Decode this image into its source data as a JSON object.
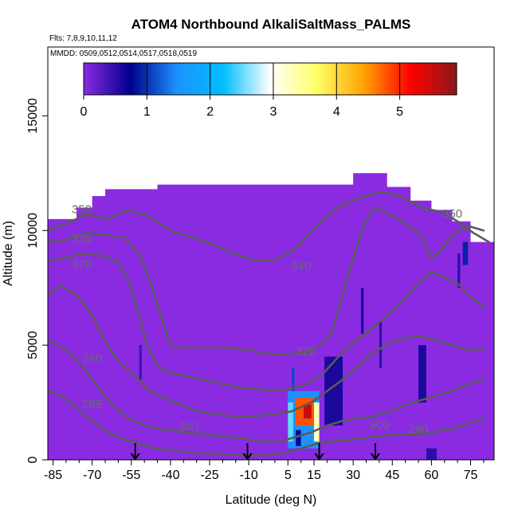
{
  "chart_data": {
    "type": "heatmap",
    "title": "ATOM4 Northbound AlkaliSaltMass_PALMS",
    "flights_label": "Flts: 7,8,9,10,11,12",
    "dates_label": "MMDD: 0509,0512,0514,0517,0518,0519",
    "xlabel": "Latitude (deg N)",
    "ylabel": "Altitude (m)",
    "xlim": [
      -87,
      84
    ],
    "ylim": [
      0,
      18000
    ],
    "x_ticks": [
      -85,
      -70,
      -55,
      -40,
      -25,
      -10,
      5,
      15,
      30,
      45,
      60,
      75
    ],
    "x_tick_labels": [
      "-85",
      "-70",
      "-55",
      "-40",
      "-25",
      "-10",
      "5",
      "15",
      "30",
      "45",
      "60",
      "75"
    ],
    "y_ticks": [
      0,
      5000,
      10000,
      15000
    ],
    "y_tick_labels": [
      "0",
      "5000",
      "10000",
      "15000"
    ],
    "colorbar": {
      "range": [
        0,
        5.9
      ],
      "ticks": [
        0,
        1,
        2,
        3,
        4,
        5
      ],
      "tick_labels": [
        "0",
        "1",
        "2",
        "3",
        "4",
        "5"
      ],
      "stops": [
        "#8a2be2",
        "#00008b",
        "#1e90ff",
        "#00bfff",
        "#ffffff",
        "#ffff66",
        "#ffa500",
        "#ff0000",
        "#8b1a1a"
      ]
    },
    "background_color": "#8a2be2",
    "contour_color": "#5a5a5a",
    "contour_labels": [
      {
        "text": "350",
        "x": -74,
        "y": 10900
      },
      {
        "text": "330",
        "x": -74,
        "y": 9600
      },
      {
        "text": "370",
        "x": -74,
        "y": 8500
      },
      {
        "text": "340",
        "x": 10,
        "y": 8400
      },
      {
        "text": "320",
        "x": 12,
        "y": 4700
      },
      {
        "text": "300",
        "x": 40,
        "y": 1500
      },
      {
        "text": "290",
        "x": -70,
        "y": 4400
      },
      {
        "text": "285",
        "x": -70,
        "y": 2400
      },
      {
        "text": "300",
        "x": -33,
        "y": 1400
      },
      {
        "text": "290",
        "x": 55,
        "y": 1300
      },
      {
        "text": "350",
        "x": 68,
        "y": 10700
      }
    ],
    "flight_arrows": [
      -53.5,
      -10.5,
      17,
      38.5
    ],
    "coverage_profile": [
      [
        -87,
        10500
      ],
      [
        -79,
        10500
      ],
      [
        -76,
        11000
      ],
      [
        -73,
        11000
      ],
      [
        -70,
        11500
      ],
      [
        -65,
        11800
      ],
      [
        -60,
        11800
      ],
      [
        -55,
        11800
      ],
      [
        -50,
        11800
      ],
      [
        -45,
        12000
      ],
      [
        -40,
        12000
      ],
      [
        -35,
        12000
      ],
      [
        -25,
        12000
      ],
      [
        -15,
        12000
      ],
      [
        -5,
        12000
      ],
      [
        0,
        12000
      ],
      [
        5,
        12000
      ],
      [
        10,
        12000
      ],
      [
        18,
        12000
      ],
      [
        25,
        12000
      ],
      [
        30,
        12500
      ],
      [
        34,
        12500
      ],
      [
        38,
        12500
      ],
      [
        43,
        11900
      ],
      [
        47,
        11900
      ],
      [
        52,
        11300
      ],
      [
        57,
        11300
      ],
      [
        60,
        10900
      ],
      [
        64,
        10900
      ],
      [
        68,
        10400
      ],
      [
        72,
        10400
      ],
      [
        75,
        9500
      ],
      [
        79,
        9500
      ],
      [
        81,
        9500
      ],
      [
        84,
        9500
      ]
    ],
    "cells": [
      {
        "x": [
          5,
          17
        ],
        "y": [
          500,
          3000
        ],
        "v": 1.5
      },
      {
        "x": [
          8,
          15
        ],
        "y": [
          1500,
          2700
        ],
        "v": 4.8
      },
      {
        "x": [
          11,
          14
        ],
        "y": [
          1800,
          2400
        ],
        "v": 5.5
      },
      {
        "x": [
          5,
          7
        ],
        "y": [
          800,
          2500
        ],
        "v": 2.5
      },
      {
        "x": [
          15,
          17
        ],
        "y": [
          800,
          2500
        ],
        "v": 3.3
      },
      {
        "x": [
          8,
          10
        ],
        "y": [
          600,
          1300
        ],
        "v": 0.8
      },
      {
        "x": [
          6.5,
          7.5
        ],
        "y": [
          3000,
          4000
        ],
        "v": 1.1
      },
      {
        "x": [
          19,
          26
        ],
        "y": [
          1500,
          4500
        ],
        "v": 0.6
      },
      {
        "x": [
          33,
          34
        ],
        "y": [
          5500,
          7500
        ],
        "v": 0.6
      },
      {
        "x": [
          40,
          41
        ],
        "y": [
          4000,
          6000
        ],
        "v": 0.5
      },
      {
        "x": [
          55,
          58
        ],
        "y": [
          2500,
          5000
        ],
        "v": 0.6
      },
      {
        "x": [
          72,
          74
        ],
        "y": [
          8500,
          9500
        ],
        "v": 0.9
      },
      {
        "x": [
          70,
          71
        ],
        "y": [
          7500,
          9000
        ],
        "v": 0.5
      },
      {
        "x": [
          -52,
          -51
        ],
        "y": [
          3500,
          5000
        ],
        "v": 0.4
      },
      {
        "x": [
          58,
          62
        ],
        "y": [
          0,
          500
        ],
        "v": 0.5
      }
    ],
    "contours": [
      [
        [
          -87,
          10000
        ],
        [
          -80,
          10300
        ],
        [
          -72,
          10700
        ],
        [
          -64,
          10500
        ],
        [
          -56,
          10900
        ],
        [
          -48,
          10600
        ],
        [
          -40,
          10000
        ],
        [
          -32,
          9700
        ],
        [
          -24,
          9400
        ],
        [
          -16,
          9000
        ],
        [
          -8,
          8700
        ],
        [
          0,
          8700
        ],
        [
          8,
          9200
        ],
        [
          16,
          10200
        ],
        [
          24,
          11000
        ],
        [
          32,
          11400
        ],
        [
          40,
          11700
        ],
        [
          48,
          11500
        ],
        [
          56,
          11000
        ],
        [
          64,
          10800
        ],
        [
          70,
          10400
        ],
        [
          76,
          9900
        ],
        [
          82,
          9500
        ]
      ],
      [
        [
          -87,
          9500
        ],
        [
          -80,
          9600
        ],
        [
          -72,
          9900
        ],
        [
          -64,
          9800
        ],
        [
          -58,
          9700
        ],
        [
          -52,
          9000
        ],
        [
          -47,
          7500
        ],
        [
          -43,
          6000
        ],
        [
          -40,
          5000
        ],
        [
          -36,
          4900
        ],
        [
          -30,
          4900
        ],
        [
          -24,
          4900
        ],
        [
          -18,
          4900
        ],
        [
          -12,
          4800
        ],
        [
          -6,
          4700
        ],
        [
          0,
          4600
        ],
        [
          6,
          4600
        ],
        [
          12,
          4700
        ],
        [
          18,
          5000
        ],
        [
          22,
          5600
        ],
        [
          26,
          7200
        ],
        [
          30,
          8800
        ],
        [
          34,
          10200
        ],
        [
          38,
          11000
        ],
        [
          44,
          10700
        ],
        [
          50,
          10300
        ],
        [
          56,
          9800
        ],
        [
          60,
          8800
        ],
        [
          64,
          9200
        ],
        [
          68,
          9800
        ],
        [
          74,
          10200
        ],
        [
          80,
          10000
        ]
      ],
      [
        [
          -87,
          8700
        ],
        [
          -80,
          8800
        ],
        [
          -74,
          9000
        ],
        [
          -66,
          8900
        ],
        [
          -60,
          8600
        ],
        [
          -56,
          7800
        ],
        [
          -52,
          6300
        ],
        [
          -49,
          5000
        ],
        [
          -45,
          4100
        ],
        [
          -40,
          3800
        ],
        [
          -32,
          3600
        ],
        [
          -24,
          3400
        ],
        [
          -16,
          3200
        ],
        [
          -8,
          3100
        ],
        [
          0,
          3000
        ],
        [
          6,
          3100
        ],
        [
          12,
          3300
        ],
        [
          18,
          3700
        ],
        [
          22,
          4200
        ],
        [
          26,
          4700
        ],
        [
          30,
          5100
        ],
        [
          36,
          5600
        ],
        [
          42,
          6200
        ],
        [
          48,
          6800
        ],
        [
          54,
          7600
        ],
        [
          60,
          8200
        ],
        [
          64,
          8000
        ],
        [
          70,
          7700
        ],
        [
          76,
          7000
        ],
        [
          80,
          6700
        ]
      ],
      [
        [
          -87,
          7200
        ],
        [
          -82,
          7600
        ],
        [
          -76,
          7200
        ],
        [
          -70,
          6300
        ],
        [
          -66,
          5400
        ],
        [
          -62,
          4600
        ],
        [
          -58,
          4100
        ],
        [
          -54,
          3700
        ],
        [
          -48,
          3000
        ],
        [
          -40,
          2600
        ],
        [
          -32,
          2200
        ],
        [
          -24,
          2000
        ],
        [
          -16,
          1900
        ],
        [
          -8,
          1900
        ],
        [
          0,
          2000
        ],
        [
          6,
          2100
        ],
        [
          10,
          2300
        ],
        [
          14,
          2500
        ],
        [
          20,
          3000
        ],
        [
          26,
          3500
        ],
        [
          32,
          4100
        ],
        [
          38,
          4700
        ],
        [
          44,
          5100
        ],
        [
          50,
          5300
        ],
        [
          56,
          5400
        ],
        [
          62,
          5200
        ],
        [
          68,
          5000
        ],
        [
          74,
          4800
        ],
        [
          80,
          4800
        ]
      ],
      [
        [
          -87,
          5200
        ],
        [
          -80,
          4800
        ],
        [
          -74,
          4100
        ],
        [
          -68,
          3200
        ],
        [
          -62,
          2400
        ],
        [
          -56,
          1800
        ],
        [
          -50,
          1500
        ],
        [
          -42,
          1300
        ],
        [
          -34,
          1200
        ],
        [
          -26,
          1100
        ],
        [
          -18,
          1000
        ],
        [
          -10,
          900
        ],
        [
          -4,
          800
        ],
        [
          2,
          800
        ],
        [
          8,
          1000
        ],
        [
          14,
          1200
        ],
        [
          20,
          1500
        ],
        [
          26,
          1700
        ],
        [
          32,
          1800
        ],
        [
          38,
          1900
        ],
        [
          44,
          2100
        ],
        [
          50,
          2400
        ],
        [
          56,
          2600
        ],
        [
          62,
          2800
        ],
        [
          68,
          3000
        ],
        [
          74,
          3300
        ],
        [
          80,
          3500
        ]
      ],
      [
        [
          -87,
          3000
        ],
        [
          -82,
          2800
        ],
        [
          -76,
          2300
        ],
        [
          -70,
          1700
        ],
        [
          -64,
          1200
        ],
        [
          -58,
          900
        ],
        [
          -52,
          700
        ],
        [
          -46,
          500
        ],
        [
          -38,
          400
        ],
        [
          -30,
          300
        ],
        [
          -20,
          250
        ],
        [
          -12,
          200
        ],
        [
          -4,
          200
        ],
        [
          4,
          300
        ],
        [
          10,
          500
        ],
        [
          16,
          700
        ],
        [
          22,
          800
        ],
        [
          30,
          900
        ],
        [
          38,
          1000
        ],
        [
          46,
          1100
        ],
        [
          54,
          1100
        ],
        [
          60,
          1200
        ],
        [
          66,
          1300
        ],
        [
          72,
          1500
        ],
        [
          80,
          1800
        ]
      ]
    ]
  }
}
